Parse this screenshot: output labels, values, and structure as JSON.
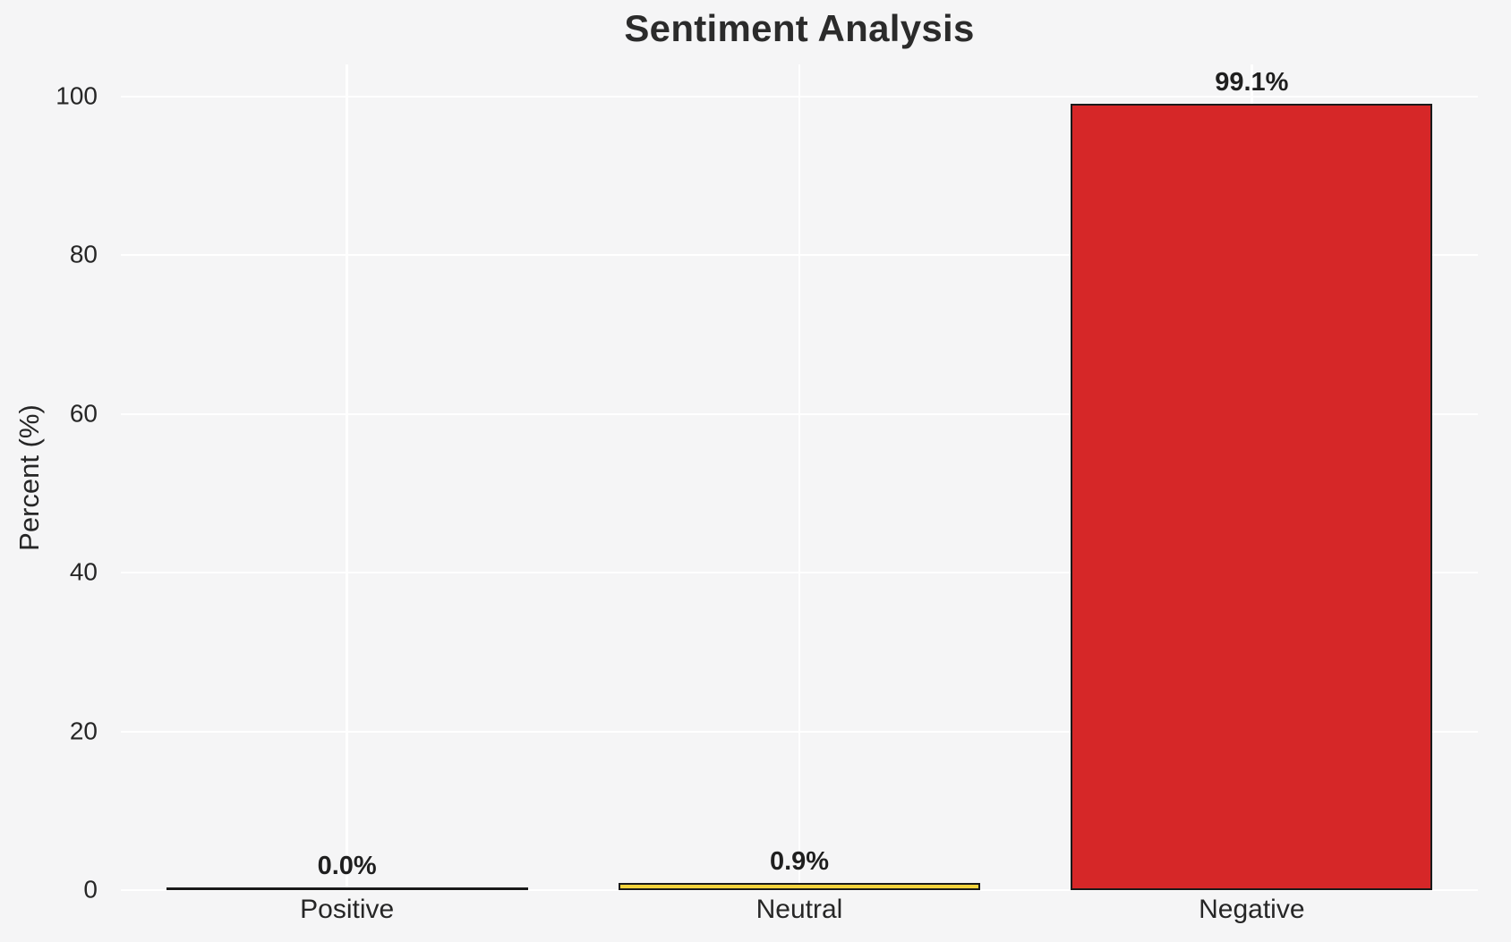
{
  "chart_data": {
    "type": "bar",
    "title": "Sentiment Analysis",
    "xlabel": "",
    "ylabel": "Percent (%)",
    "categories": [
      "Positive",
      "Neutral",
      "Negative"
    ],
    "values": [
      0.0,
      0.9,
      99.1
    ],
    "value_labels": [
      "0.0%",
      "0.9%",
      "99.1%"
    ],
    "bar_fill_colors": [
      "none",
      "#f2d23c",
      "#d62728"
    ],
    "bar_edge_color": "#1a1a1a",
    "yticks": [
      0,
      20,
      40,
      60,
      80,
      100
    ],
    "ytick_labels": [
      "0",
      "20",
      "40",
      "60",
      "80",
      "100"
    ],
    "ylim": [
      0,
      104
    ],
    "grid": true,
    "grid_color": "#ffffff",
    "background_color": "#f5f5f6",
    "text_color": "#262626",
    "legend": "none",
    "bar_width_fraction": 0.8
  }
}
